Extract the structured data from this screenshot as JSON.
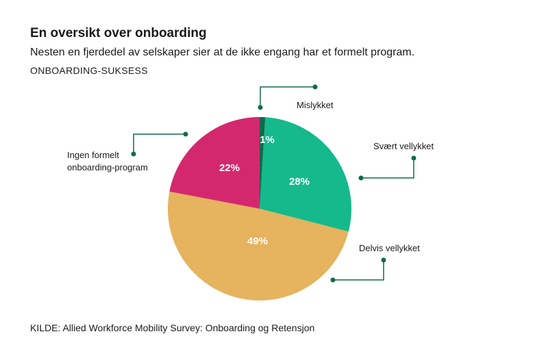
{
  "header": {
    "title": "En oversikt over onboarding",
    "subtitle": "Nesten en fjerdedel av selskaper sier at de ikke engang har et formelt program.",
    "section": "ONBOARDING-SUKSESS"
  },
  "footer": {
    "source": "KILDE: Allied Workforce Mobility Survey: Onboarding og Retensjon"
  },
  "colors": {
    "leader": "#0e6b4c"
  },
  "chart_data": {
    "type": "pie",
    "categories": [
      "Mislykket",
      "Svært vellykket",
      "Delvis vellykket",
      "Ingen formelt onboarding-program"
    ],
    "values": [
      1,
      28,
      49,
      22
    ],
    "value_labels": [
      "1%",
      "28%",
      "49%",
      "22%"
    ],
    "colors": [
      "#0e6b4c",
      "#15b98c",
      "#e6b35e",
      "#d4286e"
    ],
    "start": "12 o'clock, clockwise"
  }
}
